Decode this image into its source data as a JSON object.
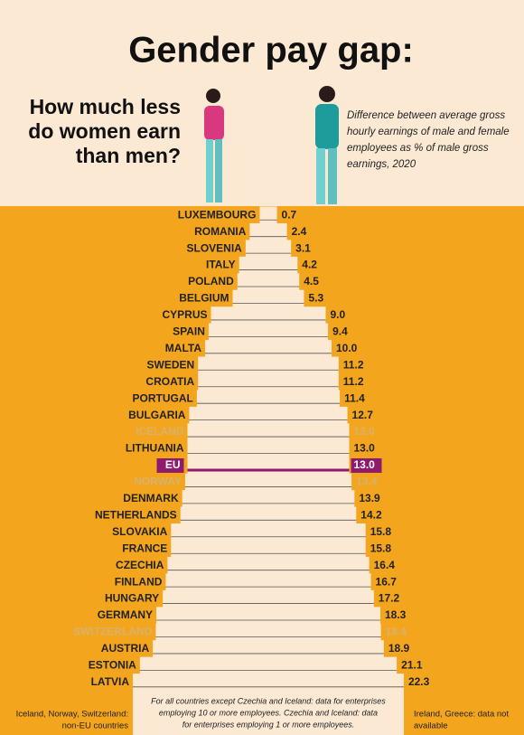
{
  "chart_data": {
    "type": "pyramid-bar",
    "title": "Gender pay gap:",
    "subtitle": [
      "How much less",
      "do women earn",
      "than men?"
    ],
    "description": [
      "Difference between average gross",
      "hourly earnings of male and female",
      "employees as % of male gross",
      "earnings, 2020"
    ],
    "categories": [
      "LUXEMBOURG",
      "ROMANIA",
      "SLOVENIA",
      "ITALY",
      "POLAND",
      "BELGIUM",
      "CYPRUS",
      "SPAIN",
      "MALTA",
      "SWEDEN",
      "CROATIA",
      "PORTUGAL",
      "BULGARIA",
      "ICELAND",
      "LITHUANIA",
      "EU",
      "NORWAY",
      "DENMARK",
      "NETHERLANDS",
      "SLOVAKIA",
      "FRANCE",
      "CZECHIA",
      "FINLAND",
      "HUNGARY",
      "GERMANY",
      "SWITZERLAND",
      "AUSTRIA",
      "ESTONIA",
      "LATVIA"
    ],
    "values": [
      0.7,
      2.4,
      3.1,
      4.2,
      4.5,
      5.3,
      9.0,
      9.4,
      10.0,
      11.2,
      11.2,
      11.4,
      12.7,
      13.0,
      13.0,
      13.0,
      13.4,
      13.9,
      14.2,
      15.8,
      15.8,
      16.4,
      16.7,
      17.2,
      18.3,
      18.4,
      18.9,
      21.1,
      22.3
    ],
    "value_labels": [
      "0.7",
      "2.4",
      "3.1",
      "4.2",
      "4.5",
      "5.3",
      "9.0",
      "9.4",
      "10.0",
      "11.2",
      "11.2",
      "11.4",
      "12.7",
      "13.0",
      "13.0",
      "13.0",
      "13.4",
      "13.9",
      "14.2",
      "15.8",
      "15.8",
      "16.4",
      "16.7",
      "17.2",
      "18.3",
      "18.4",
      "18.9",
      "21.1",
      "22.3"
    ],
    "label_colors": [
      "#222",
      "#222",
      "#222",
      "#222",
      "#222",
      "#222",
      "#222",
      "#222",
      "#222",
      "#222",
      "#222",
      "#222",
      "#222",
      "#d8b26a",
      "#222",
      "#8e1a6e",
      "#d8b26a",
      "#222",
      "#222",
      "#222",
      "#222",
      "#222",
      "#222",
      "#222",
      "#222",
      "#d8b26a",
      "#222",
      "#222",
      "#222"
    ],
    "highlight_color": "#8e1a6e",
    "bar_color": "#fbe9d3",
    "background_color": "#f3a51e",
    "notes": {
      "left": [
        "Iceland, Norway, Switzerland:",
        "non-EU countries"
      ],
      "center": [
        "For all countries except Czechia and Iceland: data for enterprises",
        "employing 10 or more employees. Czechia and Iceland: data",
        "for enterprises employing 1 or more employees."
      ],
      "right": [
        "Ireland, Greece: data not",
        "available"
      ]
    }
  }
}
